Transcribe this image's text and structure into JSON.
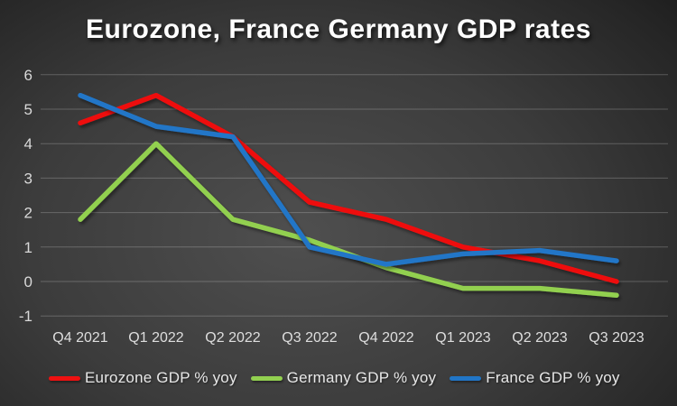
{
  "title": "Eurozone, France Germany GDP rates",
  "colors": {
    "background_center": "#4f4f4f",
    "background_edge": "#181818",
    "title_text": "#ffffff",
    "gridline": "rgba(255,255,255,0.22)",
    "axis_tick_text": "#d9d9d9",
    "legend_text": "#e8e8e8",
    "eurozone_line": "#ee1111",
    "germany_line": "#92d050",
    "france_line": "#2176c7"
  },
  "chart_data": {
    "type": "line",
    "title": "Eurozone, France Germany GDP rates",
    "categories": [
      "Q4 2021",
      "Q1 2022",
      "Q2 2022",
      "Q3 2022",
      "Q4 2022",
      "Q1 2023",
      "Q2 2023",
      "Q3 2023"
    ],
    "series": [
      {
        "name": "Eurozone GDP % yoy",
        "color": "#ee1111",
        "values": [
          4.6,
          5.4,
          4.2,
          2.3,
          1.8,
          1.0,
          0.6,
          0.0
        ]
      },
      {
        "name": "Germany GDP % yoy",
        "color": "#92d050",
        "values": [
          1.8,
          4.0,
          1.8,
          1.2,
          0.4,
          -0.2,
          -0.2,
          -0.4
        ]
      },
      {
        "name": "France GDP % yoy",
        "color": "#2176c7",
        "values": [
          5.4,
          4.5,
          4.2,
          1.0,
          0.5,
          0.8,
          0.9,
          0.6
        ]
      }
    ],
    "xlabel": "",
    "ylabel": "",
    "ylim": [
      -1,
      6
    ],
    "yticks": [
      6,
      5,
      4,
      3,
      2,
      1,
      0,
      -1
    ],
    "grid": "horizontal-only",
    "legend_position": "bottom"
  }
}
